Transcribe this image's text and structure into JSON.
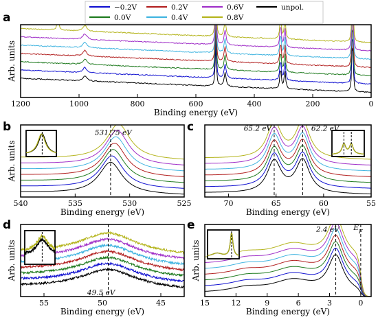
{
  "legend": {
    "entries": [
      {
        "label": "−0.2V",
        "color": "#1010d0"
      },
      {
        "label": "0.0V",
        "color": "#1e7a1e"
      },
      {
        "label": "0.2V",
        "color": "#b22020"
      },
      {
        "label": "0.4V",
        "color": "#40b4e0"
      },
      {
        "label": "0.6V",
        "color": "#a030c8"
      },
      {
        "label": "0.8V",
        "color": "#b4b41c"
      },
      {
        "label": "unpol.",
        "color": "#000000"
      }
    ]
  },
  "chart_data": [
    {
      "id": "a",
      "panel_label": "a",
      "type": "line",
      "xlabel": "Binding energy (eV)",
      "ylabel": "Arb. units",
      "xlim": [
        1200,
        0
      ],
      "x_reversed": true,
      "xticks": [
        1200,
        1000,
        800,
        600,
        400,
        200,
        0
      ],
      "offset": 1.3,
      "ylim": [
        0,
        11.4
      ],
      "base": 0.8,
      "slope": 2.2,
      "peaks": [
        {
          "center": 980,
          "amp": 0.8,
          "width": 8
        },
        {
          "center": 531.75,
          "amp": 6.5,
          "width": 2.5
        },
        {
          "center": 500,
          "amp": 2.2,
          "width": 4
        },
        {
          "center": 310,
          "amp": 3.2,
          "width": 3
        },
        {
          "center": 295,
          "amp": 2.8,
          "width": 3
        },
        {
          "center": 65.2,
          "amp": 5.5,
          "width": 2
        },
        {
          "center": 62.2,
          "amp": 5.0,
          "width": 2
        }
      ],
      "series_special": {
        "0.8V": [
          {
            "center": 1072,
            "amp": 2.5,
            "width": 3
          }
        ]
      }
    },
    {
      "id": "b",
      "panel_label": "b",
      "type": "line",
      "xlabel": "Binding energy (eV)",
      "ylabel": "Arb. units",
      "xlim": [
        540,
        525
      ],
      "x_reversed": true,
      "xticks": [
        540,
        535,
        530,
        525
      ],
      "offset": 1.0,
      "ylim": [
        0,
        12.5
      ],
      "base": 0.3,
      "slope": 0.5,
      "peaks": [
        {
          "center": 531.75,
          "amp": 5.5,
          "width": 1.3
        }
      ],
      "shift_per_series": 0.12,
      "vline": 531.75,
      "annotations": [
        {
          "text": "531.75 eV",
          "x": 533.2,
          "y": 10.8
        }
      ],
      "inset": {
        "position": "top-left",
        "xlim": [
          536,
          528
        ],
        "peaks": [
          {
            "center": 531.75,
            "width": 1.2
          }
        ],
        "vline": 531.75
      }
    },
    {
      "id": "c",
      "panel_label": "c",
      "type": "line",
      "xlabel": "Binding energy (eV)",
      "ylabel": "",
      "xlim": [
        72.5,
        55
      ],
      "x_reversed": true,
      "xticks": [
        70,
        65,
        60,
        55
      ],
      "offset": 1.0,
      "ylim": [
        0,
        12.5
      ],
      "base": 0.4,
      "slope": 0.3,
      "peaks": [
        {
          "center": 65.2,
          "amp": 5.5,
          "width": 0.9
        },
        {
          "center": 62.2,
          "amp": 5.7,
          "width": 0.9
        }
      ],
      "vlines": [
        65.2,
        62.2
      ],
      "annotations": [
        {
          "text": "65.2 eV",
          "x": 68.4,
          "y": 11.5
        },
        {
          "text": "62.2 eV",
          "x": 61.3,
          "y": 11.5
        }
      ],
      "inset": {
        "position": "top-right",
        "xlim": [
          70,
          57
        ],
        "peaks": [
          {
            "center": 65.2,
            "width": 0.9
          },
          {
            "center": 62.2,
            "width": 0.9
          }
        ],
        "vlines": [
          65.2,
          62.2
        ]
      }
    },
    {
      "id": "d",
      "panel_label": "d",
      "type": "line",
      "xlabel": "Binding energy (eV)",
      "ylabel": "Arb. units",
      "xlim": [
        57,
        43
      ],
      "x_reversed": true,
      "xticks": [
        55,
        50,
        45
      ],
      "offset": 0.95,
      "ylim": [
        0,
        12
      ],
      "base": 1.0,
      "slope": 0.6,
      "noise": 0.35,
      "peaks": [
        {
          "center": 49.5,
          "amp": 3.2,
          "width": 3.0
        }
      ],
      "vline": 49.5,
      "annotations": [
        {
          "text": "49.5 eV",
          "x": 51.3,
          "y": 0.3
        }
      ],
      "inset": {
        "position": "top-left",
        "xlim": [
          57,
          44
        ],
        "peaks": [
          {
            "center": 49.5,
            "width": 3
          }
        ],
        "vline": 49.5
      }
    },
    {
      "id": "e",
      "panel_label": "e",
      "type": "line",
      "xlabel": "Binding energy (eV)",
      "ylabel": "Arb. units",
      "xlim": [
        15,
        -1
      ],
      "x_reversed": true,
      "xticks": [
        15,
        12,
        9,
        6,
        3,
        0
      ],
      "offset": 0.95,
      "ylim": [
        0,
        12
      ],
      "base": 0.3,
      "slope": 0.2,
      "peaks": [
        {
          "center": 2.4,
          "amp": 6.0,
          "width": 0.9
        },
        {
          "center": 6.5,
          "amp": 2.2,
          "width": 2.5
        },
        {
          "center": 11.0,
          "amp": 0.8,
          "width": 2.0
        }
      ],
      "fermi_edge": 0.0,
      "vlines": [
        2.4,
        0.0
      ],
      "annotations": [
        {
          "text": "2.4 eV",
          "x": 4.3,
          "y": 10.8
        },
        {
          "text": "E",
          "sub": "F",
          "x": 0.7,
          "y": 11.1
        }
      ],
      "inset": {
        "position": "top-left",
        "xlim": [
          10,
          0
        ],
        "peaks": [
          {
            "center": 2.4,
            "width": 0.5
          }
        ],
        "vline": 2.4
      }
    }
  ]
}
